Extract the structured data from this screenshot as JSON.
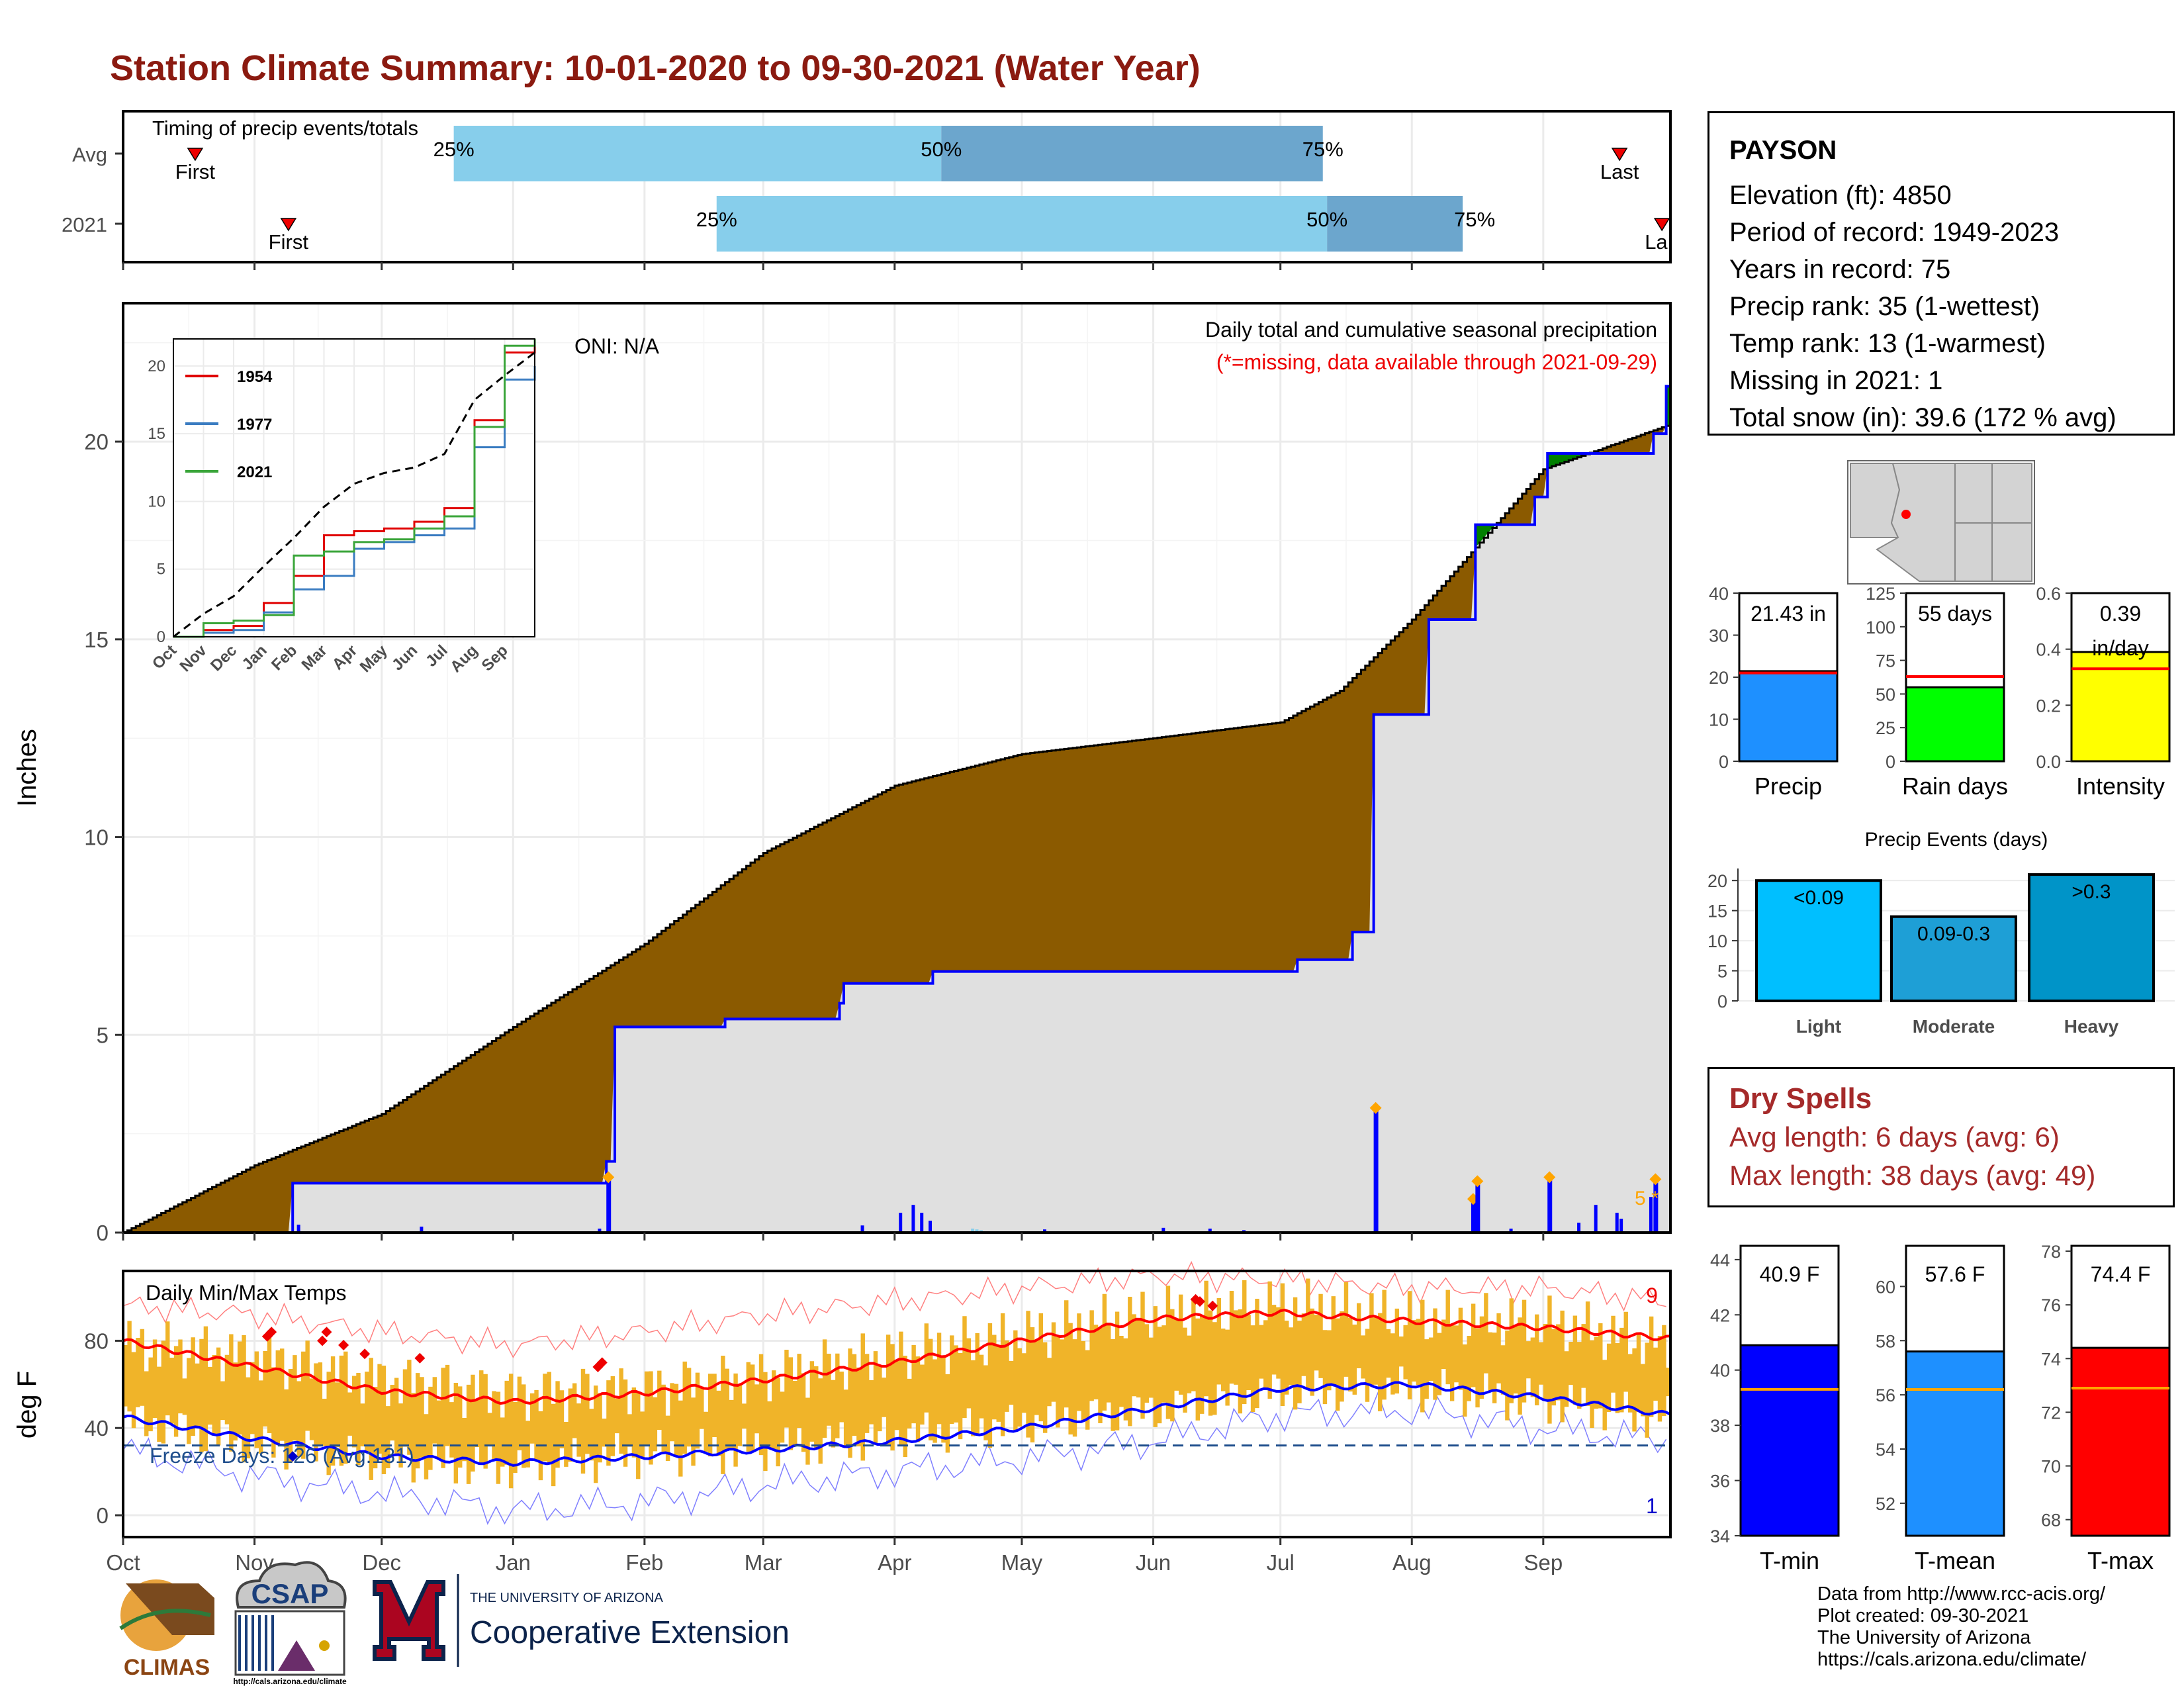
{
  "title": "Station Climate Summary: 10-01-2020 to 09-30-2021 (Water Year)",
  "colors": {
    "title": "#8B1A10",
    "departure_surplus": "#008000",
    "departure_deficit": "#8B5A00",
    "avg_cumulative_fill": "#e0e0e0",
    "cumulative_line": "#0000ff",
    "timing_light": "#87CEEB",
    "timing_dark": "#6CA6CD",
    "temp_bars": "#F0B429",
    "tmax_line": "#ff0000",
    "tmin_line": "#0000ff"
  },
  "timing_panel": {
    "title": "Timing of precip events/totals",
    "rows": [
      {
        "label": "Avg",
        "first": "First",
        "last": "Last",
        "p25": "25%",
        "p50": "50%",
        "p75": "75%"
      },
      {
        "label": "2021",
        "first": "First",
        "last": "Last",
        "p25": "25%",
        "p50": "50%",
        "p75": "75%"
      }
    ],
    "chart_data": {
      "type": "bar",
      "categories": [
        "Avg",
        "2021"
      ],
      "series": [
        {
          "name": "25%",
          "values": [
            "2020-12-18",
            "2021-02-18"
          ]
        },
        {
          "name": "50%",
          "values": [
            "2021-04-12",
            "2021-07-12"
          ]
        },
        {
          "name": "75%",
          "values": [
            "2021-07-11",
            "2021-08-13"
          ]
        },
        {
          "name": "First",
          "values": [
            "2020-10-18",
            "2020-11-09"
          ]
        },
        {
          "name": "Last",
          "values": [
            "2021-09-19",
            "2021-09-29"
          ]
        }
      ]
    }
  },
  "precip_panel": {
    "ylabel": "Inches",
    "annotation_1": "Daily total and cumulative seasonal precipitation",
    "annotation_2": "(*=missing, data available through 2021-09-29)",
    "oni": "ONI: N/A",
    "missing_marker": "5 *",
    "y_ticks": [
      "0",
      "5",
      "10",
      "15",
      "20"
    ],
    "x_ticks": [
      "Oct",
      "Nov",
      "Dec",
      "Jan",
      "Feb",
      "Mar",
      "Apr",
      "May",
      "Jun",
      "Jul",
      "Aug",
      "Sep"
    ],
    "chart_data": {
      "type": "area",
      "ylim": [
        0,
        23.5
      ],
      "series": [
        {
          "name": "Average cumulative",
          "x": [
            "2020-10-01",
            "2020-11-01",
            "2020-12-01",
            "2021-01-01",
            "2021-02-01",
            "2021-03-01",
            "2021-04-01",
            "2021-05-01",
            "2021-06-01",
            "2021-07-01",
            "2021-07-15",
            "2021-08-01",
            "2021-08-15",
            "2021-09-01",
            "2021-09-30"
          ],
          "values": [
            0,
            1.7,
            3.0,
            5.2,
            7.3,
            9.6,
            11.3,
            12.1,
            12.5,
            12.9,
            13.7,
            15.5,
            17.2,
            19.3,
            20.4
          ]
        },
        {
          "name": "2021 cumulative",
          "x": [
            "2020-10-01",
            "2020-10-27",
            "2020-11-10",
            "2021-01-23",
            "2021-01-25",
            "2021-02-20",
            "2021-03-19",
            "2021-03-20",
            "2021-04-10",
            "2021-07-05",
            "2021-07-18",
            "2021-07-23",
            "2021-08-05",
            "2021-08-16",
            "2021-08-30",
            "2021-09-02",
            "2021-09-27",
            "2021-09-30"
          ],
          "values": [
            0,
            0,
            1.25,
            1.8,
            5.2,
            5.4,
            5.8,
            6.3,
            6.6,
            6.9,
            7.6,
            13.1,
            15.5,
            17.9,
            18.6,
            19.7,
            20.2,
            21.4
          ]
        }
      ],
      "daily_precip_events": [
        {
          "date": "2021-01-23",
          "value": 1.35
        },
        {
          "date": "2021-07-23",
          "value": 3.1
        },
        {
          "date": "2021-08-15",
          "value": 0.8
        },
        {
          "date": "2021-08-16",
          "value": 1.25
        },
        {
          "date": "2021-09-02",
          "value": 1.35
        },
        {
          "date": "2021-09-27",
          "value": 1.3
        }
      ]
    }
  },
  "inset": {
    "legend": [
      "1954",
      "1977",
      "2021"
    ],
    "y_ticks": [
      "0",
      "5",
      "10",
      "15",
      "20"
    ],
    "x_ticks": [
      "Oct",
      "Nov",
      "Dec",
      "Jan",
      "Feb",
      "Mar",
      "Apr",
      "May",
      "Jun",
      "Jul",
      "Aug",
      "Sep"
    ],
    "chart_data": {
      "type": "line",
      "x": [
        "Oct",
        "Nov",
        "Dec",
        "Jan",
        "Feb",
        "Mar",
        "Apr",
        "May",
        "Jun",
        "Jul",
        "Aug",
        "Sep",
        "end"
      ],
      "ylim": [
        0,
        22
      ],
      "series": [
        {
          "name": "1954",
          "values": [
            0,
            0.5,
            0.8,
            2.5,
            4.5,
            7.5,
            7.8,
            8,
            8.5,
            9.5,
            16,
            21,
            22
          ]
        },
        {
          "name": "1977",
          "values": [
            0,
            0.3,
            0.5,
            1.8,
            3.5,
            4.5,
            6.5,
            7,
            7.5,
            8,
            14,
            19,
            20
          ]
        },
        {
          "name": "2021",
          "values": [
            0,
            1.0,
            1.2,
            1.6,
            6.0,
            6.3,
            7.0,
            7.2,
            8.0,
            8.9,
            15.5,
            21.5,
            22
          ]
        },
        {
          "name": "average",
          "values": [
            0,
            1.7,
            3.0,
            5.2,
            7.3,
            9.6,
            11.3,
            12.1,
            12.5,
            13.5,
            17.5,
            19.3,
            21
          ]
        }
      ]
    }
  },
  "temp_panel": {
    "title": "Daily Min/Max Temps",
    "ylabel": "deg F",
    "freeze_days": "Freeze Days: 126 (Avg:131)",
    "count_top": "9",
    "count_bottom": "1",
    "y_ticks": [
      "0",
      "40",
      "80"
    ],
    "x_ticks": [
      "Oct",
      "Nov",
      "Dec",
      "Jan",
      "Feb",
      "Mar",
      "Apr",
      "May",
      "Jun",
      "Jul",
      "Aug",
      "Sep"
    ],
    "chart_data": {
      "type": "area",
      "ylim": [
        -10,
        112
      ],
      "x": [
        "Oct",
        "Nov",
        "Dec",
        "Jan",
        "Feb",
        "Mar",
        "Apr",
        "May",
        "Jun",
        "Jul",
        "Aug",
        "Sep",
        "end"
      ],
      "series": [
        {
          "name": "avg max",
          "values": [
            80,
            68,
            57,
            52,
            56,
            62,
            70,
            80,
            90,
            93,
            89,
            86,
            81
          ]
        },
        {
          "name": "avg min",
          "values": [
            45,
            35,
            27,
            24,
            27,
            30,
            34,
            40,
            49,
            58,
            60,
            54,
            46
          ]
        },
        {
          "name": "daily max",
          "values": [
            78,
            73,
            62,
            56,
            58,
            64,
            74,
            82,
            92,
            96,
            90,
            88,
            78
          ]
        },
        {
          "name": "daily min",
          "values": [
            44,
            32,
            25,
            22,
            28,
            30,
            36,
            42,
            48,
            57,
            58,
            52,
            44
          ]
        },
        {
          "name": "record high",
          "values": [
            96,
            92,
            84,
            78,
            84,
            92,
            98,
            104,
            110,
            108,
            104,
            104,
            98
          ]
        },
        {
          "name": "record low",
          "values": [
            30,
            18,
            10,
            2,
            6,
            14,
            20,
            26,
            34,
            46,
            48,
            40,
            34
          ]
        }
      ],
      "freeze_line": 32
    }
  },
  "info": {
    "station": "PAYSON",
    "lines": [
      "Elevation (ft): 4850",
      "Period of record: 1949-2023",
      "Years in record: 75",
      "Precip rank: 35 (1-wettest)",
      "Temp rank: 13 (1-warmest)",
      "Missing in 2021: 1",
      "Total snow (in): 39.6 (172 % avg)"
    ]
  },
  "precip_stats": [
    {
      "label": "Precip",
      "value_text": "21.43 in",
      "value": 21.43,
      "avg": 21.0,
      "ymax": 40,
      "ticks": [
        "0",
        "10",
        "20",
        "30",
        "40"
      ],
      "color": "#1E90FF"
    },
    {
      "label": "Rain days",
      "value_text": "55 days",
      "value": 55,
      "avg": 63,
      "ymax": 125,
      "ticks": [
        "0",
        "25",
        "50",
        "75",
        "100",
        "125"
      ],
      "color": "#00FF00"
    },
    {
      "label": "Intensity",
      "value_text": "0.39 in/day",
      "value": 0.39,
      "avg": 0.33,
      "ymax": 0.6,
      "ticks": [
        "0.0",
        "0.2",
        "0.4",
        "0.6"
      ],
      "color": "#FFFF00"
    }
  ],
  "events": {
    "title": "Precip Events (days)",
    "y_ticks": [
      "0",
      "5",
      "10",
      "15",
      "20"
    ],
    "chart_data": {
      "type": "bar",
      "categories": [
        "Light",
        "Moderate",
        "Heavy"
      ],
      "values": [
        20,
        14,
        21
      ],
      "bar_labels": [
        "<0.09",
        "0.09-0.3",
        ">0.3"
      ],
      "ylim": [
        0,
        22
      ]
    }
  },
  "dry_spells": {
    "title": "Dry Spells",
    "avg_length": "Avg length: 6 days (avg: 6)",
    "max_length": "Max length: 38 days (avg: 49)"
  },
  "temp_stats": [
    {
      "label": "T-min",
      "value_text": "40.9 F",
      "value": 40.9,
      "avg": 39.3,
      "ymin": 34,
      "ymax": 44.5,
      "ticks": [
        "34",
        "36",
        "38",
        "40",
        "42",
        "44"
      ],
      "tickvals": [
        34,
        36,
        38,
        40,
        42,
        44
      ],
      "color": "#0000FF"
    },
    {
      "label": "T-mean",
      "value_text": "57.6 F",
      "value": 57.6,
      "avg": 56.2,
      "ymin": 50.8,
      "ymax": 61.5,
      "ticks": [
        "52",
        "54",
        "56",
        "58",
        "60"
      ],
      "tickvals": [
        52,
        54,
        56,
        58,
        60
      ],
      "color": "#1E90FF"
    },
    {
      "label": "T-max",
      "value_text": "74.4 F",
      "value": 74.4,
      "avg": 72.9,
      "ymin": 67.4,
      "ymax": 78.2,
      "ticks": [
        "68",
        "70",
        "72",
        "74",
        "76",
        "78"
      ],
      "tickvals": [
        68,
        70,
        72,
        74,
        76,
        78
      ],
      "color": "#FF0000"
    }
  ],
  "footer": {
    "line1": "Data from http://www.rcc-acis.org/",
    "line2": "Plot created: 09-30-2021",
    "line3": "The University of Arizona",
    "line4": "https://cals.arizona.edu/climate/"
  },
  "logos": {
    "climas": "CLIMAS",
    "csap": "CSAP",
    "csap_url": "http://cals.arizona.edu/climate",
    "ua_small": "THE UNIVERSITY OF ARIZONA",
    "ua_big": "Cooperative Extension"
  }
}
